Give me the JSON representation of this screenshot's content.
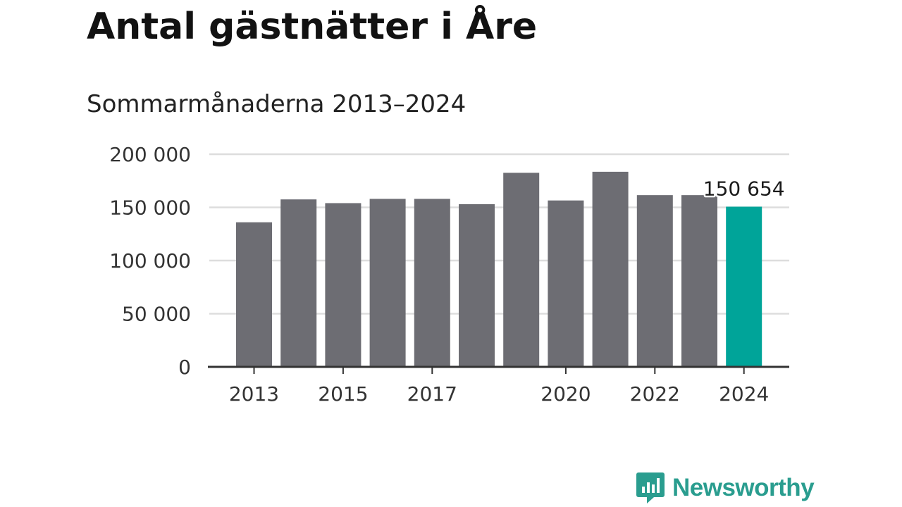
{
  "title": "Antal gästnätter i Åre",
  "subtitle": "Sommarmånaderna 2013–2024",
  "brand": {
    "name": "Newsworthy",
    "color": "#2a9d8f",
    "icon": "newsworthy-logo-icon"
  },
  "colors": {
    "bar": "#6d6d73",
    "highlight": "#00a499",
    "grid": "#dddddd",
    "axis": "#333333"
  },
  "chart_data": {
    "type": "bar",
    "title": "Antal gästnätter i Åre",
    "subtitle": "Sommarmånaderna 2013–2024",
    "categories": [
      "2013",
      "2014",
      "2015",
      "2016",
      "2017",
      "2018",
      "2019",
      "2020",
      "2021",
      "2022",
      "2023",
      "2024"
    ],
    "values": [
      136000,
      157500,
      154000,
      158000,
      158000,
      153000,
      182500,
      156500,
      183500,
      161500,
      161500,
      150654
    ],
    "highlight_index": 11,
    "ylim": [
      0,
      200000
    ],
    "yticks": [
      0,
      50000,
      100000,
      150000,
      200000
    ],
    "ytick_labels": [
      "0",
      "50 000",
      "100 000",
      "150 000",
      "200 000"
    ],
    "xtick_labels": [
      {
        "category": "2013",
        "label": "2013"
      },
      {
        "category": "2015",
        "label": "2015"
      },
      {
        "category": "2017",
        "label": "2017"
      },
      {
        "category": "2020",
        "label": "2020"
      },
      {
        "category": "2022",
        "label": "2022"
      },
      {
        "category": "2024",
        "label": "2024"
      }
    ],
    "data_label": {
      "category": "2024",
      "label": "150 654"
    },
    "grid": true,
    "legend": "none"
  }
}
